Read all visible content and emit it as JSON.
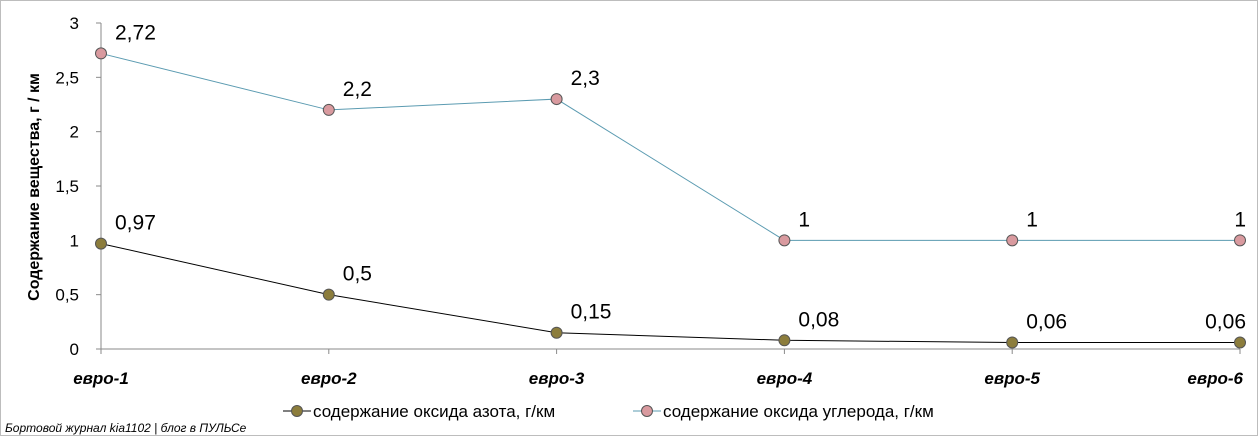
{
  "chart_data": {
    "type": "line",
    "ylabel": "Содержание вещества, г / км",
    "xlabel": "",
    "ylim": [
      0,
      3
    ],
    "yticks": [
      "0",
      "0,5",
      "1",
      "1,5",
      "2",
      "2,5",
      "3"
    ],
    "grid": false,
    "legend_position": "bottom",
    "categories": [
      "евро-1",
      "евро-2",
      "евро-3",
      "евро-4",
      "евро-5",
      "евро-6"
    ],
    "series": [
      {
        "name": "содержание оксида азота, г/км",
        "values": [
          0.97,
          0.5,
          0.15,
          0.08,
          0.06,
          0.06
        ],
        "labels": [
          "0,97",
          "0,5",
          "0,15",
          "0,08",
          "0,06",
          "0,06"
        ],
        "line_color": "#000000",
        "marker_color": "#8c7d3c"
      },
      {
        "name": "содержание оксида углерода, г/км",
        "values": [
          2.72,
          2.2,
          2.3,
          1,
          1,
          1
        ],
        "labels": [
          "2,72",
          "2,2",
          "2,3",
          "1",
          "1",
          "1"
        ],
        "line_color": "#5b9bb1",
        "marker_color": "#d99a9f"
      }
    ]
  },
  "credit": "Бортовой журнал kia1102 | блог в ПУЛЬСе"
}
